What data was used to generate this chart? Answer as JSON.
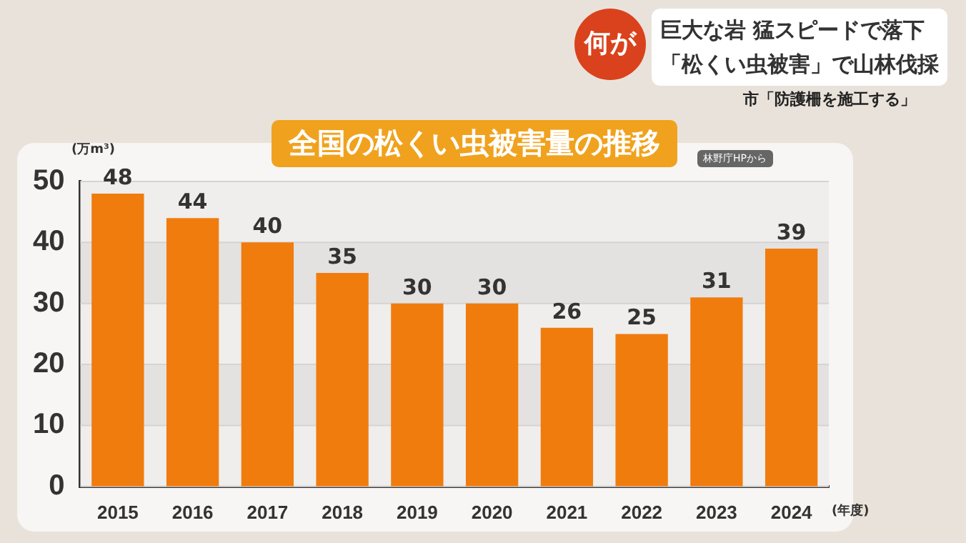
{
  "chart_data": {
    "type": "bar",
    "title": "全国の松くい虫被害量の推移",
    "ylabel": "(万m³)",
    "xlabel": "(年度)",
    "annotations": [
      "何が",
      "巨大な岩 猛スピードで落下",
      "「松くい虫被害」で山林伐採",
      "市「防護柵を施工する」",
      "林野庁HPから"
    ],
    "categories": [
      "2015",
      "2016",
      "2017",
      "2018",
      "2019",
      "2020",
      "2021",
      "2022",
      "2023",
      "2024"
    ],
    "values": [
      48,
      44,
      40,
      35,
      30,
      30,
      26,
      25,
      31,
      39
    ],
    "color": "#f07c0e",
    "ylim": [
      0,
      50
    ],
    "yticks": [
      0,
      10,
      20,
      30,
      40,
      50
    ],
    "grid": "y",
    "legend": false,
    "data_labels": true
  }
}
